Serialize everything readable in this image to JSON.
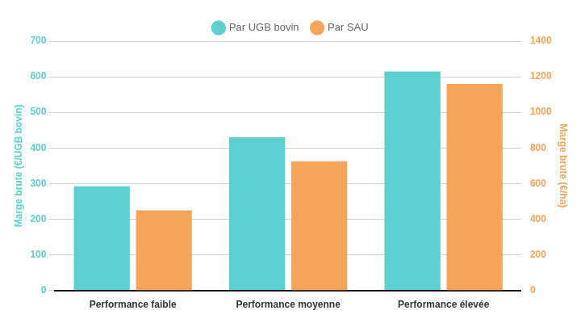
{
  "chart_data": {
    "type": "bar",
    "categories": [
      "Performance faible",
      "Performance moyenne",
      "Performance élevée"
    ],
    "series": [
      {
        "name": "Par UGB bovin",
        "color": "#5DCFCF",
        "values": [
          292,
          430,
          615
        ]
      },
      {
        "name": "Par SAU",
        "color": "#F5A55A",
        "values": [
          450,
          725,
          1160
        ],
        "axis": "y2"
      }
    ],
    "ylabel": "Marge brute (€/UGB bovin)",
    "y2label": "Marge brute (€/ha)",
    "ylim": [
      0,
      700
    ],
    "yticks": [
      0,
      100,
      200,
      300,
      400,
      500,
      600,
      700
    ],
    "y2lim": [
      0,
      1400
    ],
    "y2ticks": [
      0,
      200,
      400,
      600,
      800,
      1000,
      1200,
      1400
    ],
    "grid": true,
    "legend": "top"
  }
}
